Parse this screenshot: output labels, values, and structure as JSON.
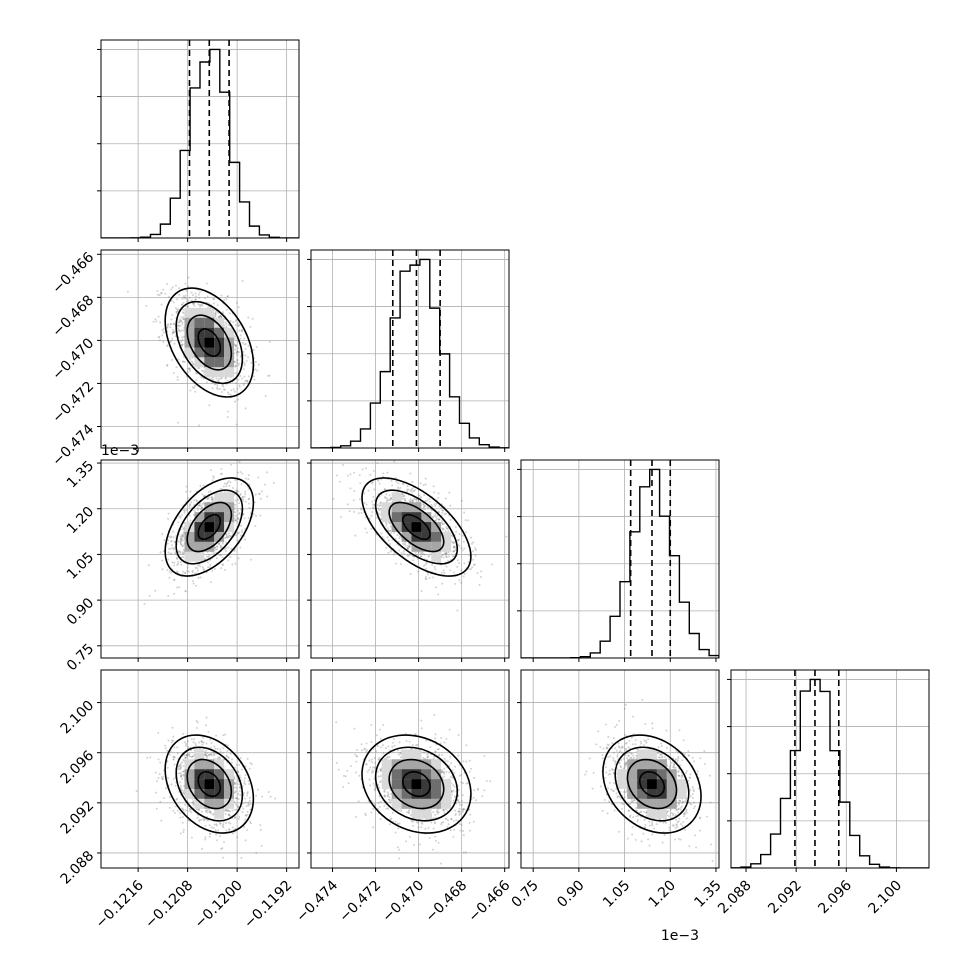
{
  "chart_data": {
    "type": "corner",
    "grid": true,
    "quantiles": [
      0.16,
      0.5,
      0.84
    ],
    "colors": {
      "line": "#000000",
      "scatter": "#7f7f7f",
      "grid": "#b0b0b0"
    },
    "params": [
      {
        "range": [
          -0.1222,
          -0.119
        ],
        "ticks": [
          "−0.1216",
          "−0.1208",
          "−0.1200",
          "−0.1192"
        ],
        "tick_values": [
          -0.1216,
          -0.1208,
          -0.12,
          -0.1192
        ],
        "mean": -0.12045,
        "sd": 0.00031,
        "quantile_values": [
          -0.12077,
          -0.12045,
          -0.12013
        ],
        "offset_label": ""
      },
      {
        "range": [
          -0.475,
          -0.4658
        ],
        "ticks": [
          "−0.474",
          "−0.472",
          "−0.470",
          "−0.468",
          "−0.466"
        ],
        "tick_values": [
          -0.474,
          -0.472,
          -0.47,
          -0.468,
          -0.466
        ],
        "mean": -0.4701,
        "sd": 0.0011,
        "quantile_values": [
          -0.4712,
          -0.4701,
          -0.469
        ],
        "offset_label": ""
      },
      {
        "range": [
          0.71,
          1.36
        ],
        "ticks": [
          "0.75",
          "0.90",
          "1.05",
          "1.20",
          "1.35"
        ],
        "tick_values": [
          0.75,
          0.9,
          1.05,
          1.2,
          1.35
        ],
        "mean": 1.14,
        "sd": 0.07,
        "quantile_values": [
          1.07,
          1.14,
          1.2
        ],
        "offset_label": "1e−3"
      },
      {
        "range": [
          2.0868,
          2.1026
        ],
        "ticks": [
          "2.088",
          "2.092",
          "2.096",
          "2.100"
        ],
        "tick_values": [
          2.088,
          2.092,
          2.096,
          2.1
        ],
        "mean": 2.0935,
        "sd": 0.0017,
        "quantile_values": [
          2.0919,
          2.0935,
          2.0954
        ],
        "offset_label": ""
      }
    ],
    "correlations": [
      {
        "pair": [
          0,
          1
        ],
        "rho": -0.4
      },
      {
        "pair": [
          0,
          2
        ],
        "rho": 0.5
      },
      {
        "pair": [
          1,
          2
        ],
        "rho": -0.6
      },
      {
        "pair": [
          0,
          3
        ],
        "rho": -0.3
      },
      {
        "pair": [
          1,
          3
        ],
        "rho": -0.2
      },
      {
        "pair": [
          2,
          3
        ],
        "rho": -0.25
      }
    ],
    "histogram_bins": 20,
    "contour_levels_sigma": [
      0.5,
      1.0,
      1.5,
      2.0
    ],
    "density_shades": [
      "#d9d9d9",
      "#a6a6a6",
      "#6e6e6e",
      "#3a3a3a",
      "#000000"
    ]
  }
}
